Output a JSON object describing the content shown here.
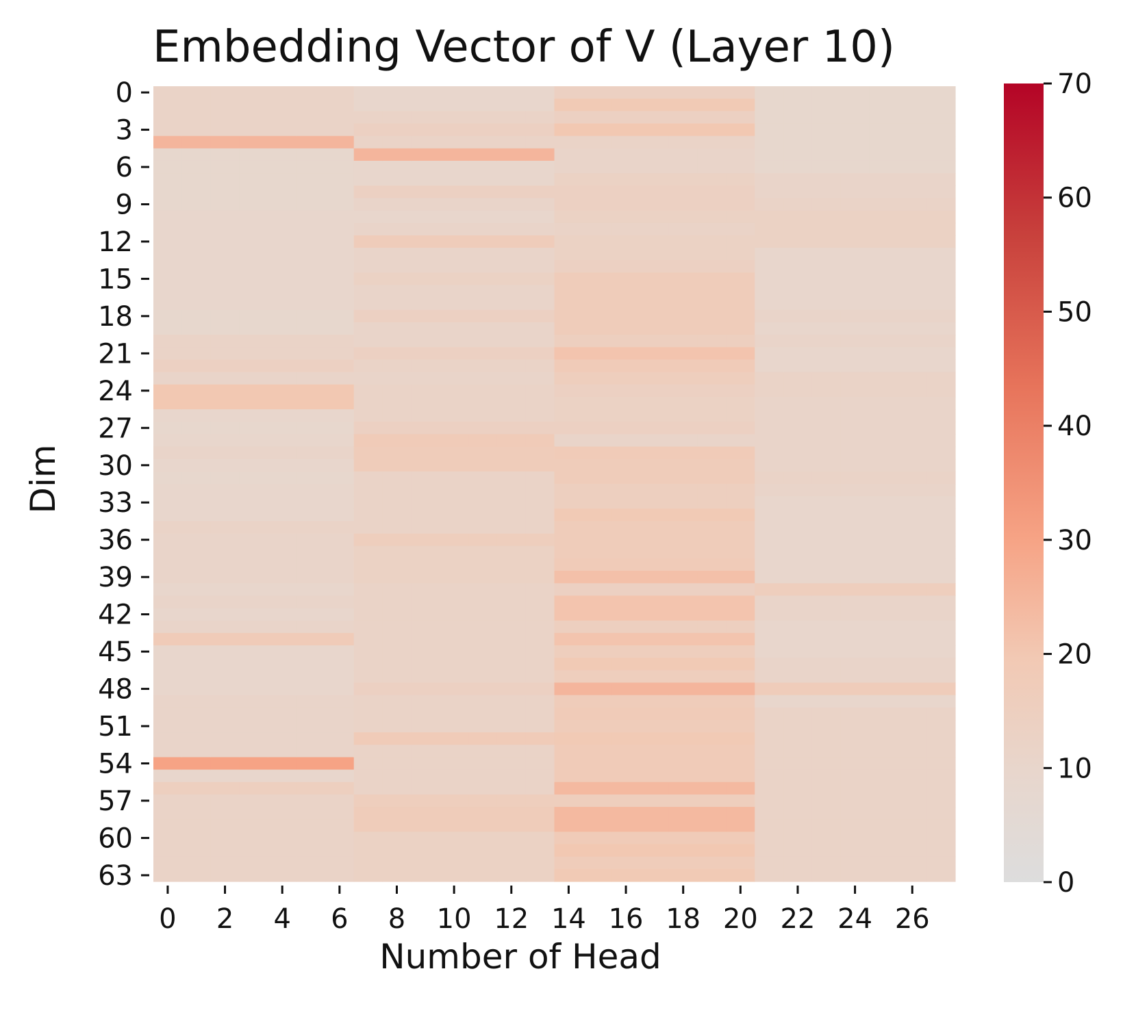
{
  "chart_data": {
    "type": "heatmap",
    "title": "Embedding Vector of V (Layer 10)",
    "xlabel": "Number of Head",
    "ylabel": "Dim",
    "n_heads": 28,
    "n_dims": 64,
    "x_tick_labels": [
      "0",
      "2",
      "4",
      "6",
      "8",
      "10",
      "12",
      "14",
      "16",
      "18",
      "20",
      "22",
      "24",
      "26"
    ],
    "y_tick_labels": [
      "0",
      "3",
      "6",
      "9",
      "12",
      "15",
      "18",
      "21",
      "24",
      "27",
      "30",
      "33",
      "36",
      "39",
      "42",
      "45",
      "48",
      "51",
      "54",
      "57",
      "60",
      "63"
    ],
    "colorbar": {
      "min": 0,
      "max": 70,
      "tick_labels": [
        "0",
        "10",
        "20",
        "30",
        "40",
        "50",
        "60",
        "70"
      ],
      "colormap": "coolwarm (upper half)",
      "colors": [
        "#dddddd",
        "#f2c9b4",
        "#f6a385",
        "#e7745b",
        "#c8413c",
        "#b40426"
      ]
    },
    "grid": false,
    "head_groups": [
      {
        "heads": [
          0,
          6
        ],
        "values": [
          12,
          12,
          12,
          12,
          25,
          9,
          9,
          9,
          9,
          9,
          10,
          10,
          10,
          10,
          10,
          10,
          10,
          10,
          9,
          9,
          12,
          12,
          14,
          11,
          20,
          20,
          10,
          9,
          10,
          11,
          10,
          9,
          10,
          10,
          10,
          12,
          11,
          11,
          11,
          11,
          10,
          11,
          10,
          11,
          18,
          10,
          10,
          10,
          10,
          11,
          11,
          11,
          11,
          11,
          30,
          10,
          15,
          12,
          12,
          12,
          12,
          12,
          12,
          12
        ]
      },
      {
        "heads": [
          7,
          13
        ],
        "values": [
          10,
          10,
          12,
          14,
          12,
          25,
          10,
          10,
          14,
          11,
          10,
          11,
          17,
          11,
          11,
          13,
          11,
          11,
          14,
          11,
          11,
          14,
          12,
          11,
          12,
          12,
          12,
          14,
          18,
          17,
          17,
          12,
          12,
          12,
          12,
          12,
          16,
          13,
          13,
          13,
          12,
          12,
          12,
          12,
          12,
          12,
          12,
          12,
          14,
          12,
          12,
          12,
          18,
          12,
          12,
          12,
          12,
          16,
          17,
          17,
          13,
          13,
          13,
          13
        ]
      },
      {
        "heads": [
          14,
          20
        ],
        "values": [
          14,
          19,
          14,
          20,
          12,
          11,
          11,
          13,
          14,
          14,
          13,
          12,
          13,
          13,
          14,
          17,
          17,
          17,
          17,
          17,
          15,
          21,
          18,
          16,
          14,
          13,
          13,
          14,
          11,
          18,
          17,
          17,
          15,
          15,
          19,
          17,
          17,
          17,
          18,
          22,
          14,
          21,
          21,
          15,
          21,
          16,
          19,
          16,
          25,
          17,
          18,
          17,
          19,
          18,
          18,
          18,
          24,
          16,
          24,
          24,
          18,
          20,
          17,
          19
        ]
      },
      {
        "heads": [
          21,
          27
        ],
        "values": [
          9,
          9,
          9,
          9,
          9,
          9,
          9,
          11,
          11,
          12,
          13,
          13,
          13,
          10,
          10,
          10,
          10,
          10,
          11,
          10,
          11,
          10,
          10,
          12,
          12,
          11,
          11,
          11,
          11,
          11,
          11,
          12,
          11,
          10,
          10,
          10,
          10,
          10,
          10,
          10,
          16,
          11,
          11,
          10,
          10,
          10,
          11,
          11,
          17,
          10,
          12,
          12,
          12,
          12,
          12,
          12,
          12,
          12,
          12,
          12,
          12,
          12,
          12,
          12
        ]
      }
    ]
  }
}
